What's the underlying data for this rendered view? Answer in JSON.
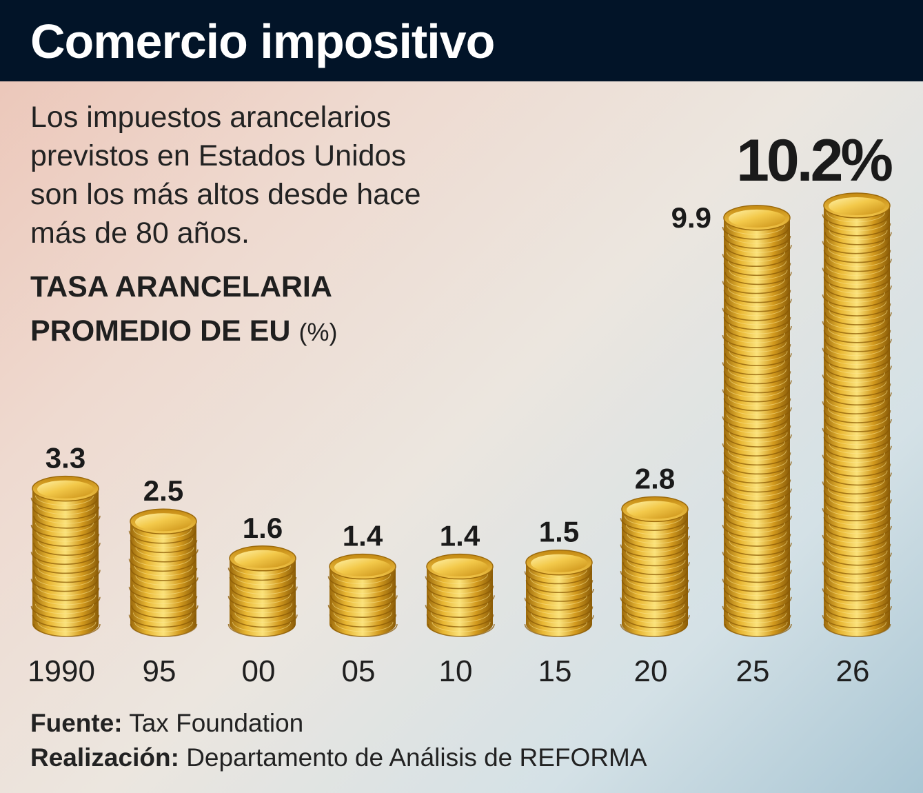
{
  "header": {
    "title": "Comercio impositivo",
    "subtitle": "Los impuestos arancelarios previstos en Estados Unidos son los más altos desde hace más de 80 años."
  },
  "chart_data": {
    "type": "bar",
    "title": "TASA ARANCELARIA PROMEDIO DE EU",
    "unit": "(%)",
    "categories": [
      "1990",
      "95",
      "00",
      "05",
      "10",
      "15",
      "20",
      "25",
      "26"
    ],
    "values": [
      3.3,
      2.5,
      1.6,
      1.4,
      1.4,
      1.5,
      2.8,
      9.9,
      10.2
    ],
    "value_labels": [
      "3.3",
      "2.5",
      "1.6",
      "1.4",
      "1.4",
      "1.5",
      "2.8",
      "9.9",
      "10.2%"
    ],
    "ylim": [
      0,
      10.2
    ],
    "grid": false,
    "style": "coin stacks",
    "colors": {
      "coin": "#d9a21c",
      "coin_light": "#f7d85c",
      "coin_dark": "#9c6a0c"
    }
  },
  "footer": {
    "source_label": "Fuente:",
    "source": "Tax Foundation",
    "credit_label": "Realización:",
    "credit": "Departamento de Análisis de REFORMA"
  }
}
